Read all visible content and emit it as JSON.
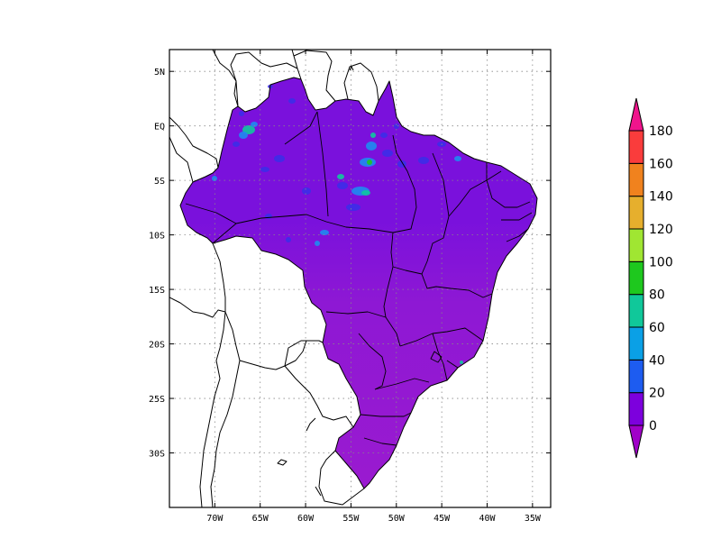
{
  "map": {
    "lon_ticks": [
      "70W",
      "65W",
      "60W",
      "55W",
      "50W",
      "45W",
      "40W",
      "35W"
    ],
    "lat_ticks": [
      "5N",
      "EQ",
      "5S",
      "10S",
      "15S",
      "20S",
      "25S",
      "30S"
    ],
    "lon_values": [
      -70,
      -65,
      -60,
      -55,
      -50,
      -45,
      -40,
      -35
    ],
    "lat_values": [
      5,
      0,
      -5,
      -10,
      -15,
      -20,
      -25,
      -30
    ],
    "extent": {
      "lon_min": -75,
      "lon_max": -33,
      "lat_min": -35,
      "lat_max": 7
    },
    "grid": "dotted"
  },
  "colorbar": {
    "labels": [
      "0",
      "20",
      "40",
      "60",
      "80",
      "100",
      "120",
      "140",
      "160",
      "180"
    ],
    "levels": [
      0,
      20,
      40,
      60,
      80,
      100,
      120,
      140,
      160,
      180
    ],
    "colors": [
      "#7d00dd",
      "#3c1ee6",
      "#1d5cf0",
      "#0aa0e6",
      "#10c89a",
      "#1ec81e",
      "#a0e632",
      "#e6af2d",
      "#f0821e",
      "#fa3c3c",
      "#f0148c"
    ],
    "under_color": "#a000c8",
    "over_color": "#f0148c"
  },
  "field_colors": {
    "base_north": "#7a11dc",
    "base_south": "#9a1ad0",
    "high_20": "#3c2ee8",
    "high_40": "#1e8cf0",
    "high_60": "#10c8a0",
    "high_80": "#1ec81e"
  }
}
